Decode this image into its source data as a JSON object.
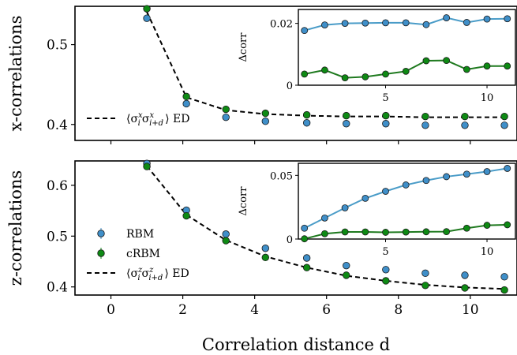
{
  "colors": {
    "rbm": "#3f8fc9",
    "crbm": "#0e8a14",
    "rbm_line": "#4a9cc8",
    "crbm_line": "#1f7a1f",
    "ed": "#000000"
  },
  "chart_data": [
    {
      "id": "top",
      "type": "scatter",
      "ylabel": "x-correlations",
      "xlim": [
        -1,
        11.3
      ],
      "ylim": [
        0.38,
        0.548
      ],
      "yticks": [
        0.4,
        0.5
      ],
      "ytick_labels": [
        "0.4",
        "0.5"
      ],
      "xticks": [
        0,
        2,
        4,
        6,
        8,
        10
      ],
      "series": [
        {
          "name": "RBM",
          "x": [
            1,
            2.1,
            3.2,
            4.3,
            5.45,
            6.55,
            7.65,
            8.75,
            9.85,
            10.95
          ],
          "y": [
            0.533,
            0.426,
            0.409,
            0.404,
            0.402,
            0.401,
            0.401,
            0.399,
            0.399,
            0.399
          ]
        },
        {
          "name": "cRBM",
          "x": [
            1,
            2.1,
            3.2,
            4.3,
            5.45,
            6.55,
            7.65,
            8.75,
            9.85,
            10.95
          ],
          "y": [
            0.545,
            0.435,
            0.419,
            0.414,
            0.412,
            0.411,
            0.411,
            0.41,
            0.41,
            0.41
          ]
        }
      ],
      "ed_line": {
        "x": [
          1,
          2.1,
          3.2,
          4.3,
          5.45,
          6.55,
          7.65,
          8.75,
          9.85,
          10.95
        ],
        "y": [
          0.541,
          0.434,
          0.418,
          0.413,
          0.411,
          0.41,
          0.41,
          0.409,
          0.409,
          0.409
        ]
      },
      "legend": [
        {
          "label": "⟨σ",
          "sup": "x",
          "sub": "i",
          "label2": "σ",
          "sup2": "x",
          "sub2": "i+d",
          "tail": "⟩ ED"
        }
      ],
      "inset": {
        "ylabel": "Δcorr",
        "xlim": [
          0.7,
          11.4
        ],
        "ylim": [
          0,
          0.0245
        ],
        "yticks": [
          0,
          0.02
        ],
        "ytick_labels": [
          "0",
          "0.02"
        ],
        "xticks": [
          5,
          10
        ],
        "xtick_labels": [
          "5",
          "10"
        ],
        "series": [
          {
            "name": "RBM",
            "x": [
              1,
              2,
              3,
              4,
              5,
              6,
              7,
              8,
              9,
              10,
              11
            ],
            "y": [
              0.0177,
              0.0195,
              0.02,
              0.0201,
              0.0202,
              0.0202,
              0.0196,
              0.0218,
              0.0203,
              0.0214,
              0.0215
            ]
          },
          {
            "name": "cRBM",
            "x": [
              1,
              2,
              3,
              4,
              5,
              6,
              7,
              8,
              9,
              10,
              11
            ],
            "y": [
              0.0036,
              0.0049,
              0.0024,
              0.0027,
              0.0036,
              0.0045,
              0.0079,
              0.008,
              0.0051,
              0.0062,
              0.0062
            ]
          }
        ]
      }
    },
    {
      "id": "bottom",
      "type": "scatter",
      "ylabel": "z-correlations",
      "xlabel": "Correlation distance d",
      "xlim": [
        -1,
        11.3
      ],
      "ylim": [
        0.384,
        0.648
      ],
      "yticks": [
        0.4,
        0.5,
        0.6
      ],
      "ytick_labels": [
        "0.4",
        "0.5",
        "0.6"
      ],
      "xticks": [
        0,
        2,
        4,
        6,
        8,
        10
      ],
      "xtick_labels": [
        "0",
        "2",
        "4",
        "6",
        "8",
        "10"
      ],
      "series": [
        {
          "name": "RBM",
          "x": [
            1,
            2.1,
            3.2,
            4.3,
            5.45,
            6.55,
            7.65,
            8.75,
            9.85,
            10.95
          ],
          "y": [
            0.643,
            0.551,
            0.504,
            0.476,
            0.457,
            0.442,
            0.434,
            0.427,
            0.423,
            0.42
          ]
        },
        {
          "name": "cRBM",
          "x": [
            1,
            2.1,
            3.2,
            4.3,
            5.45,
            6.55,
            7.65,
            8.75,
            9.85,
            10.95
          ],
          "y": [
            0.637,
            0.54,
            0.491,
            0.458,
            0.438,
            0.423,
            0.412,
            0.403,
            0.398,
            0.394
          ]
        }
      ],
      "ed_line": {
        "x": [
          1,
          2.1,
          3.2,
          4.3,
          5.45,
          6.55,
          7.65,
          8.75,
          9.85,
          10.95
        ],
        "y": [
          0.638,
          0.542,
          0.492,
          0.46,
          0.438,
          0.422,
          0.412,
          0.404,
          0.399,
          0.396
        ]
      },
      "legend": [
        {
          "label": "RBM"
        },
        {
          "label": "cRBM"
        },
        {
          "label": "⟨σ",
          "sup": "z",
          "sub": "i",
          "label2": "σ",
          "sup2": "z",
          "sub2": "i+d",
          "tail": "⟩ ED"
        }
      ],
      "inset": {
        "ylabel": "Δcorr",
        "xlim": [
          0.7,
          11.4
        ],
        "ylim": [
          0,
          0.0595
        ],
        "yticks": [
          0,
          0.05
        ],
        "ytick_labels": [
          "0",
          "0.05"
        ],
        "xticks": [
          5,
          10
        ],
        "xtick_labels": [
          "5",
          "10"
        ],
        "series": [
          {
            "name": "RBM",
            "x": [
              1,
              2,
              3,
              4,
              5,
              6,
              7,
              8,
              9,
              10,
              11
            ],
            "y": [
              0.0085,
              0.0165,
              0.0245,
              0.032,
              0.0375,
              0.0425,
              0.046,
              0.049,
              0.051,
              0.053,
              0.0555
            ]
          },
          {
            "name": "cRBM",
            "x": [
              1,
              2,
              3,
              4,
              5,
              6,
              7,
              8,
              9,
              10,
              11
            ],
            "y": [
              0.0002,
              0.0042,
              0.0056,
              0.0056,
              0.0053,
              0.0055,
              0.0057,
              0.0058,
              0.0085,
              0.0108,
              0.0112
            ]
          }
        ]
      }
    }
  ]
}
